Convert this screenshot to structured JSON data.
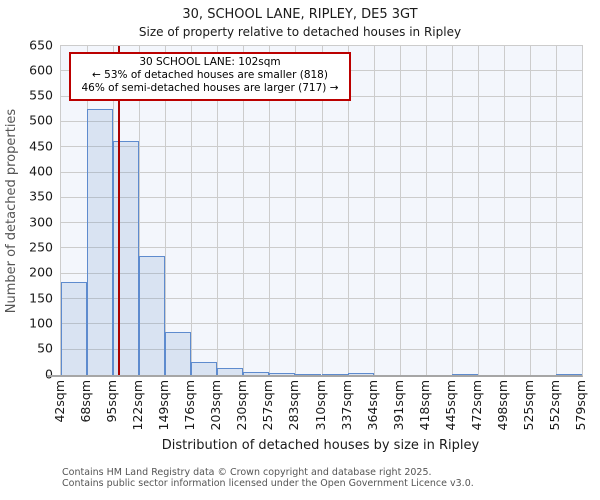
{
  "title": "30, SCHOOL LANE, RIPLEY, DE5 3GT",
  "subtitle": "Size of property relative to detached houses in Ripley",
  "annotation": {
    "line1": "30 SCHOOL LANE: 102sqm",
    "line2": "← 53% of detached houses are smaller (818)",
    "line3": "46% of semi-detached houses are larger (717) →"
  },
  "chart_data": {
    "type": "bar",
    "subtype": "histogram",
    "title": "30, SCHOOL LANE, RIPLEY, DE5 3GT",
    "subtitle": "Size of property relative to detached houses in Ripley",
    "xlabel": "Distribution of detached houses by size in Ripley",
    "ylabel": "Number of detached properties",
    "bin_labels": [
      "42sqm",
      "68sqm",
      "95sqm",
      "122sqm",
      "149sqm",
      "176sqm",
      "203sqm",
      "230sqm",
      "257sqm",
      "283sqm",
      "310sqm",
      "337sqm",
      "364sqm",
      "391sqm",
      "418sqm",
      "445sqm",
      "472sqm",
      "498sqm",
      "525sqm",
      "552sqm",
      "579sqm"
    ],
    "bin_edges_sqm": [
      42,
      68,
      95,
      122,
      149,
      176,
      203,
      230,
      257,
      283,
      310,
      337,
      364,
      391,
      418,
      445,
      472,
      498,
      525,
      552,
      579
    ],
    "values": [
      183,
      525,
      462,
      236,
      85,
      26,
      13,
      5,
      3,
      2,
      2,
      4,
      0,
      0,
      0,
      2,
      0,
      0,
      0,
      2
    ],
    "ylim": [
      0,
      650
    ],
    "ytick_step": 50,
    "grid": true,
    "legend": "none",
    "marker_sqm": 102,
    "marker_label": "30 SCHOOL LANE: 102sqm"
  },
  "footer": {
    "line1": "Contains HM Land Registry data © Crown copyright and database right 2025.",
    "line2": "Contains public sector information licensed under the Open Government Licence v3.0."
  },
  "colors": {
    "bar_fill": "rgba(100,142,202,0.18)",
    "bar_edge": "#5e8bce",
    "marker_line": "#aa0000",
    "annotation_border": "#bb0000",
    "plot_background": "#f3f6fc",
    "gridline": "#cccccc"
  }
}
